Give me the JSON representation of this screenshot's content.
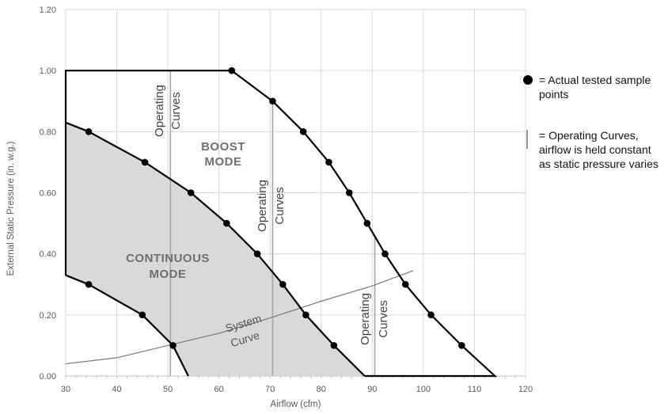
{
  "chart_data": {
    "type": "line",
    "xlabel": "Airflow (cfm)",
    "ylabel": "External Static Pressure (in. w.g.)",
    "xlim": [
      30,
      120
    ],
    "ylim": [
      0,
      1.2
    ],
    "xticks": [
      "30",
      "40",
      "50",
      "60",
      "70",
      "80",
      "90",
      "100",
      "110",
      "120"
    ],
    "yticks": [
      "0.00",
      "0.20",
      "0.40",
      "0.60",
      "0.80",
      "1.00",
      "1.20"
    ],
    "grid": true,
    "continuous_region": [
      [
        30,
        0.83
      ],
      [
        34.5,
        0.8
      ],
      [
        45.5,
        0.7
      ],
      [
        54.5,
        0.6
      ],
      [
        61.5,
        0.5
      ],
      [
        67.5,
        0.4
      ],
      [
        72.5,
        0.3
      ],
      [
        77,
        0.2
      ],
      [
        82.5,
        0.1
      ],
      [
        88.5,
        0.0
      ],
      [
        54,
        0.0
      ],
      [
        51,
        0.1
      ],
      [
        45,
        0.2
      ],
      [
        34.5,
        0.3
      ],
      [
        30,
        0.33
      ]
    ],
    "boost_outline": [
      [
        30,
        0.33
      ],
      [
        30,
        1.0
      ],
      [
        62.5,
        1.0
      ],
      [
        70.5,
        0.9
      ],
      [
        76.5,
        0.8
      ],
      [
        81.5,
        0.7
      ],
      [
        85.5,
        0.6
      ],
      [
        89,
        0.5
      ],
      [
        92.5,
        0.4
      ],
      [
        96.5,
        0.3
      ],
      [
        101.5,
        0.2
      ],
      [
        107.5,
        0.1
      ],
      [
        114,
        0.0
      ],
      [
        88.5,
        0.0
      ]
    ],
    "tested_points": [
      [
        62.5,
        1.0
      ],
      [
        70.5,
        0.9
      ],
      [
        76.5,
        0.8
      ],
      [
        81.5,
        0.7
      ],
      [
        85.5,
        0.6
      ],
      [
        89,
        0.5
      ],
      [
        92.5,
        0.4
      ],
      [
        96.5,
        0.3
      ],
      [
        101.5,
        0.2
      ],
      [
        107.5,
        0.1
      ],
      [
        34.5,
        0.8
      ],
      [
        45.5,
        0.7
      ],
      [
        54.5,
        0.6
      ],
      [
        61.5,
        0.5
      ],
      [
        67.5,
        0.4
      ],
      [
        72.5,
        0.3
      ],
      [
        77,
        0.2
      ],
      [
        82.5,
        0.1
      ],
      [
        34.5,
        0.3
      ],
      [
        45,
        0.2
      ],
      [
        51,
        0.1
      ]
    ],
    "operating_curve_x": [
      50.5,
      70.5,
      90.5
    ],
    "system_curve": [
      [
        30,
        0.04
      ],
      [
        40,
        0.06
      ],
      [
        50,
        0.1
      ],
      [
        60,
        0.14
      ],
      [
        70,
        0.19
      ],
      [
        80,
        0.245
      ],
      [
        90,
        0.295
      ],
      [
        98,
        0.345
      ]
    ],
    "annotations": {
      "boost": [
        "BOOST",
        "MODE"
      ],
      "continuous": [
        "CONTINUOUS",
        "MODE"
      ],
      "operating": [
        "Operating",
        "Curves"
      ],
      "system": [
        "System",
        "Curve"
      ]
    }
  },
  "legend": {
    "points_label": "= Actual tested sample points",
    "curves_label": "= Operating Curves, airflow is held constant as static pressure varies"
  }
}
